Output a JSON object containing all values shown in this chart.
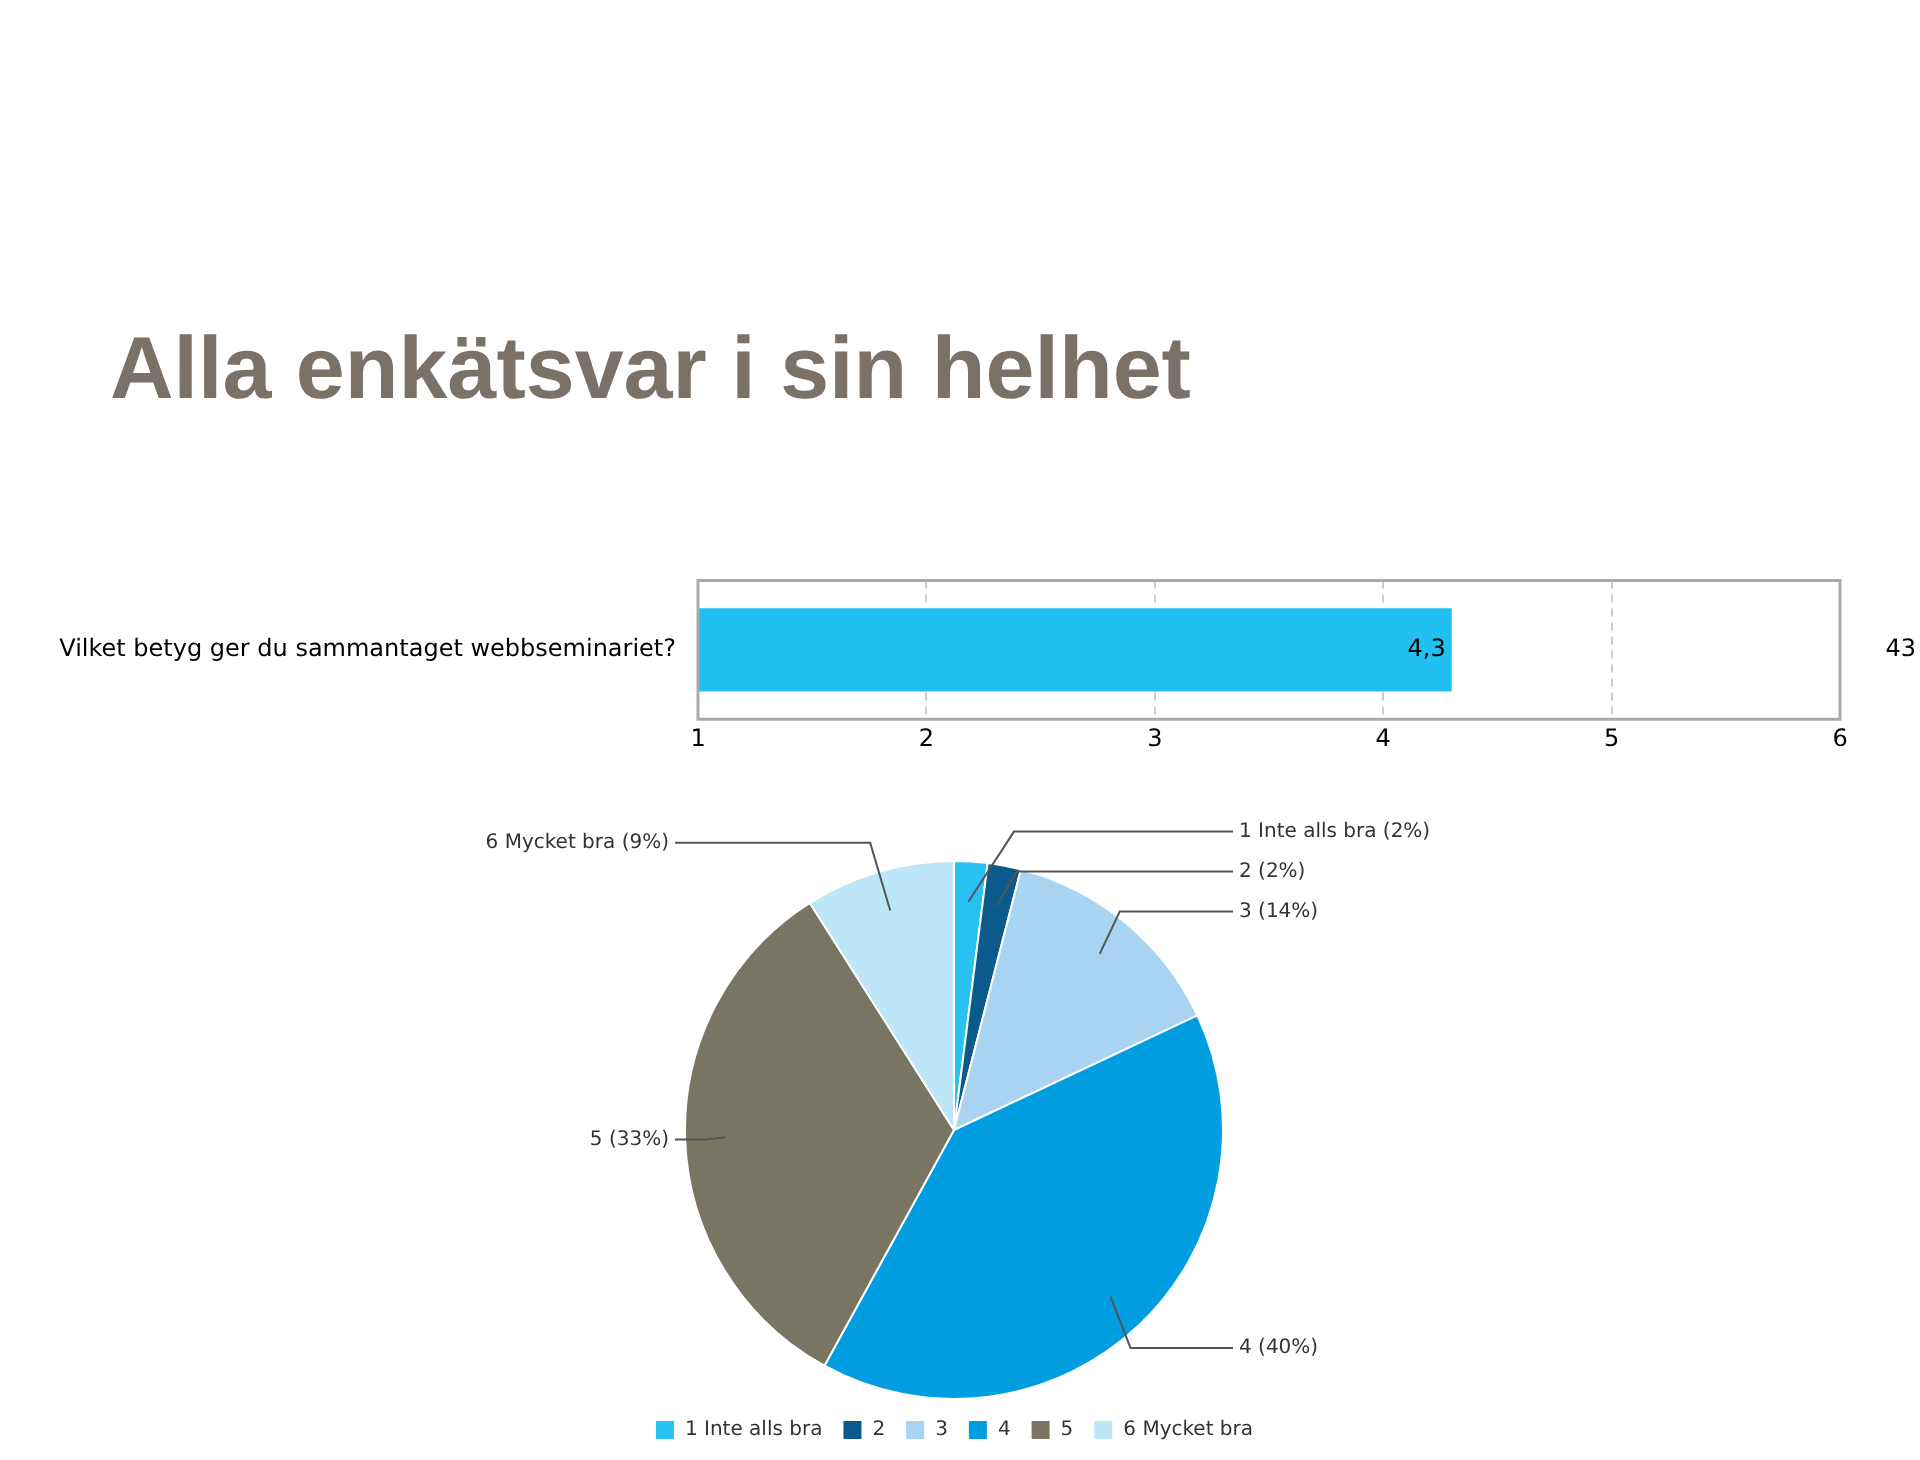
{
  "chart_data": [
    {
      "type": "bar",
      "title": "Alla enkätsvar i sin helhet",
      "orientation": "horizontal",
      "categories": [
        "Vilket betyg ger du sammantaget webbseminariet?"
      ],
      "values": [
        4.3
      ],
      "value_labels": [
        "4,3"
      ],
      "color": "#22c0ee",
      "xlim": [
        1,
        6
      ],
      "xticks": [
        1,
        2,
        3,
        4,
        5,
        6
      ],
      "grid": "x",
      "annotations": [
        "43"
      ]
    },
    {
      "type": "pie",
      "categories": [
        "1 Inte alls bra",
        "2",
        "3",
        "4",
        "5",
        "6 Mycket bra"
      ],
      "values": [
        2,
        2,
        14,
        40,
        33,
        9
      ],
      "colors": [
        "#29c1f0",
        "#0a5a8c",
        "#a8d4f2",
        "#009ee0",
        "#787563",
        "#bde6f8"
      ],
      "value_labels": [
        "1 Inte alls bra (2%)",
        "2 (2%)",
        "3 (14%)",
        "4 (40%)",
        "5 (33%)",
        "6 Mycket bra (9%)"
      ],
      "legend": "bottom"
    }
  ]
}
